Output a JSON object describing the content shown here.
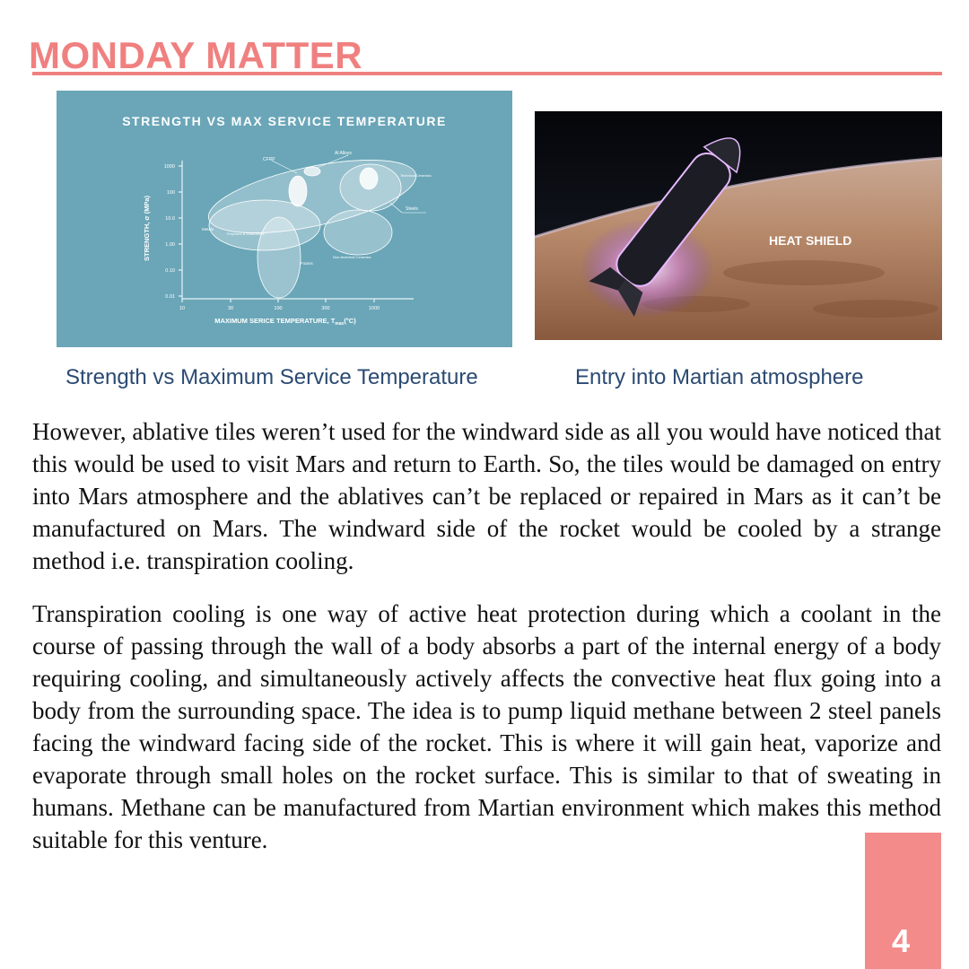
{
  "header": {
    "title": "MONDAY MATTER"
  },
  "figures": {
    "left": {
      "chart_title": "STRENGTH VS MAX SERVICE TEMPERATURE",
      "xlabel": "MAXIMUM SERICE TEMPERATURE, T",
      "xlabel_sub": "max",
      "xlabel_unit": "(°C)",
      "ylabel": "STRENGTH, σ (MPa)",
      "y_ticks": [
        "1000",
        "100",
        "10.0",
        "1.00",
        "0.10",
        "0.01"
      ],
      "x_ticks": [
        "10",
        "30",
        "100",
        "300",
        "1000"
      ],
      "region_labels": {
        "cfrp": "CFRP",
        "al_alloys": "Al Alloys",
        "technical_ceramics": "Technical Ceramics",
        "steels": "Steels",
        "metals": "Metals",
        "polymers": "Polymers & Elastomers",
        "foams": "Foams",
        "nontech_ceramics": "Non-technical Ceramics"
      },
      "caption": "Strength vs Maximum Service Temperature"
    },
    "right": {
      "overlay_label": "HEAT SHIELD",
      "caption": "Entry into Martian atmosphere"
    }
  },
  "body": {
    "paragraphs": [
      "However, ablative tiles weren’t used for the windward side as all you would have noticed that this would be used to visit Mars and return to Earth. So, the tiles would be damaged on entry into Mars atmosphere and the ablatives can’t be replaced or repaired in Mars as it can’t be manufactured on Mars. The windward side of the rocket would be cooled by a strange method i.e. transpiration cooling.",
      "Transpiration cooling is one way of active heat protection during which a coolant in the course of passing through the wall of a body absorbs a part of the internal energy of a body requiring cooling, and simultaneously actively affects the convective heat flux going into a body from the surrounding space. The idea is to pump liquid methane between 2 steel panels facing the windward facing side of the rocket. This is where it will gain heat, vaporize and evaporate through small holes on the rocket surface. This is similar to that of sweating in humans. Methane can be manufactured from Martian environment which makes this method suitable for this venture."
    ]
  },
  "footer": {
    "page_number": "4"
  },
  "colors": {
    "accent": "#f08080",
    "caption": "#2b4a72",
    "chart_bg": "#6aa6b8",
    "page_tab": "#f48b8b"
  }
}
